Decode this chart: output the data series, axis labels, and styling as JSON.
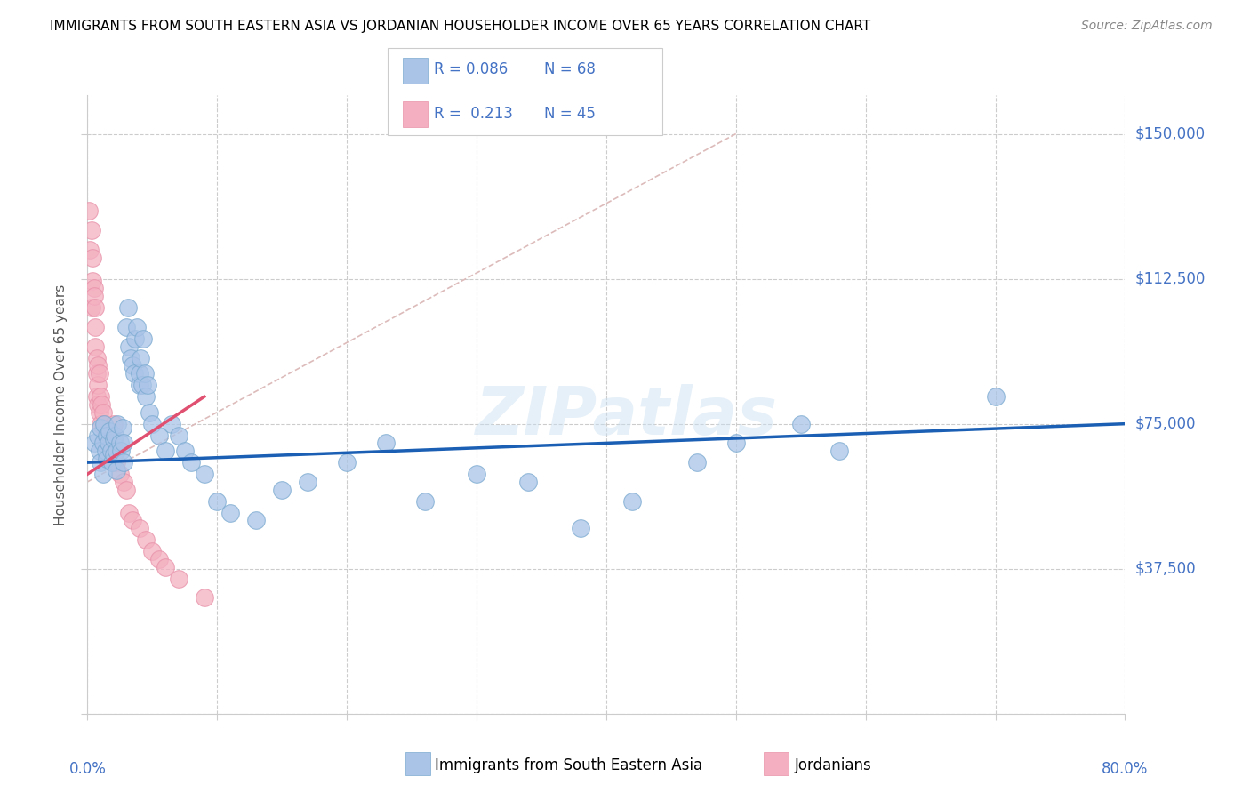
{
  "title": "IMMIGRANTS FROM SOUTH EASTERN ASIA VS JORDANIAN HOUSEHOLDER INCOME OVER 65 YEARS CORRELATION CHART",
  "source": "Source: ZipAtlas.com",
  "ylabel": "Householder Income Over 65 years",
  "y_ticks": [
    0,
    37500,
    75000,
    112500,
    150000
  ],
  "y_tick_labels": [
    "",
    "$37,500",
    "$75,000",
    "$112,500",
    "$150,000"
  ],
  "x_min": 0.0,
  "x_max": 0.8,
  "y_min": 0,
  "y_max": 160000,
  "watermark": "ZIPatlas",
  "blue_scatter_x": [
    0.005,
    0.008,
    0.009,
    0.01,
    0.01,
    0.012,
    0.012,
    0.013,
    0.014,
    0.015,
    0.015,
    0.016,
    0.017,
    0.018,
    0.019,
    0.02,
    0.02,
    0.021,
    0.022,
    0.022,
    0.023,
    0.025,
    0.026,
    0.027,
    0.028,
    0.028,
    0.03,
    0.031,
    0.032,
    0.033,
    0.035,
    0.036,
    0.037,
    0.038,
    0.04,
    0.04,
    0.041,
    0.042,
    0.043,
    0.044,
    0.045,
    0.046,
    0.048,
    0.05,
    0.055,
    0.06,
    0.065,
    0.07,
    0.075,
    0.08,
    0.09,
    0.1,
    0.11,
    0.13,
    0.15,
    0.17,
    0.2,
    0.23,
    0.26,
    0.3,
    0.34,
    0.38,
    0.42,
    0.47,
    0.5,
    0.55,
    0.58,
    0.7
  ],
  "blue_scatter_y": [
    70000,
    72000,
    68000,
    65000,
    74000,
    70000,
    62000,
    75000,
    68000,
    72000,
    66000,
    70000,
    73000,
    68000,
    65000,
    71000,
    67000,
    72000,
    68000,
    63000,
    75000,
    70000,
    68000,
    74000,
    70000,
    65000,
    100000,
    105000,
    95000,
    92000,
    90000,
    88000,
    97000,
    100000,
    85000,
    88000,
    92000,
    85000,
    97000,
    88000,
    82000,
    85000,
    78000,
    75000,
    72000,
    68000,
    75000,
    72000,
    68000,
    65000,
    62000,
    55000,
    52000,
    50000,
    58000,
    60000,
    65000,
    70000,
    55000,
    62000,
    60000,
    48000,
    55000,
    65000,
    70000,
    75000,
    68000,
    82000
  ],
  "pink_scatter_x": [
    0.001,
    0.002,
    0.003,
    0.003,
    0.004,
    0.004,
    0.005,
    0.005,
    0.006,
    0.006,
    0.006,
    0.007,
    0.007,
    0.007,
    0.008,
    0.008,
    0.008,
    0.009,
    0.009,
    0.01,
    0.01,
    0.011,
    0.012,
    0.013,
    0.014,
    0.015,
    0.016,
    0.017,
    0.018,
    0.019,
    0.02,
    0.02,
    0.022,
    0.025,
    0.028,
    0.03,
    0.032,
    0.035,
    0.04,
    0.045,
    0.05,
    0.055,
    0.06,
    0.07,
    0.09
  ],
  "pink_scatter_y": [
    130000,
    120000,
    125000,
    105000,
    118000,
    112000,
    110000,
    108000,
    100000,
    95000,
    105000,
    92000,
    88000,
    82000,
    90000,
    85000,
    80000,
    88000,
    78000,
    82000,
    75000,
    80000,
    78000,
    75000,
    72000,
    70000,
    68000,
    72000,
    70000,
    65000,
    75000,
    68000,
    65000,
    62000,
    60000,
    58000,
    52000,
    50000,
    48000,
    45000,
    42000,
    40000,
    38000,
    35000,
    30000
  ],
  "blue_line_x": [
    0.0,
    0.8
  ],
  "blue_line_y": [
    65000,
    75000
  ],
  "pink_line_x": [
    0.0,
    0.09
  ],
  "pink_line_y": [
    62000,
    82000
  ],
  "dashed_line_x": [
    0.0,
    0.5
  ],
  "dashed_line_y": [
    60000,
    150000
  ],
  "blue_line_color": "#1a5fb4",
  "pink_line_color": "#e05070",
  "dashed_line_color": "#ddbbbb",
  "grid_color": "#cccccc",
  "background_color": "#ffffff",
  "title_fontsize": 11,
  "axis_label_color": "#4472c4",
  "tick_label_color": "#4472c4",
  "scatter_blue_fill": "#aac4e8",
  "scatter_blue_edge": "#7aaad0",
  "scatter_pink_fill": "#f4b0c0",
  "scatter_pink_edge": "#e890a8"
}
